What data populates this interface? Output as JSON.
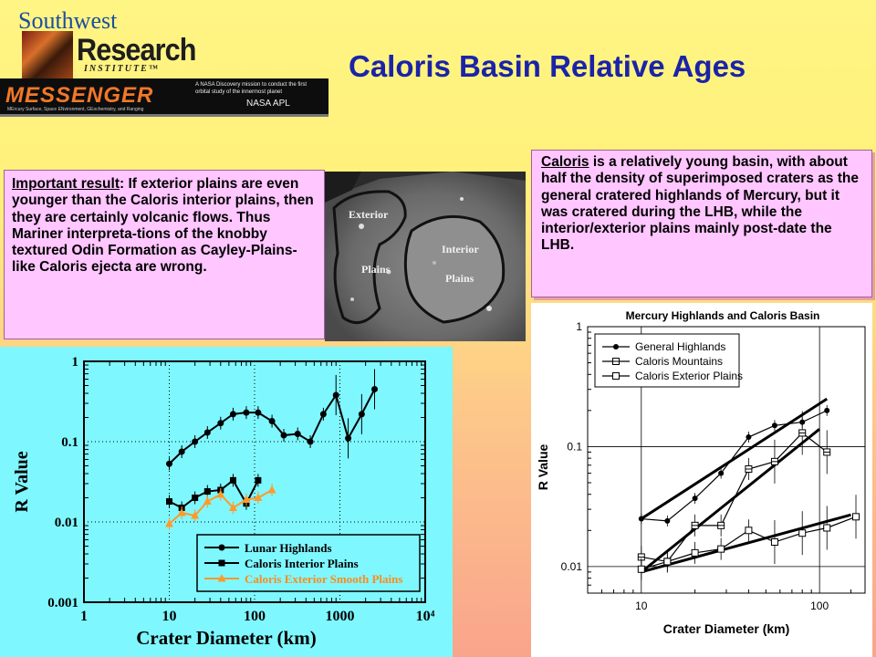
{
  "header": {
    "logo_top": "Southwest",
    "logo_main": "Research",
    "logo_sub": "INSTITUTE™",
    "banner_title": "MESSENGER",
    "banner_sub": "MErcury Surface, Space ENvironment, GEochemistry, and Ranging",
    "banner_desc": "A NASA Discovery mission to conduct the first orbital study of the innermost planet",
    "banner_logos": "NASA  APL",
    "title": "Caloris Basin Relative Ages"
  },
  "left_box": {
    "lead": "Important result",
    "text": ":  If exterior plains are even younger than the Caloris interior plains, then they are certainly volcanic flows.  Thus Mariner  interpreta-tions of the knobby textured Odin Formation as Cayley-Plains-like Caloris ejecta are wrong."
  },
  "right_box": {
    "lead": "Caloris",
    "text": " is a relatively young basin, with about half the density of superimposed craters as the general cratered highlands of Mercury, but it was cratered during the LHB, while the interior/exterior plains mainly post-date the LHB."
  },
  "image": {
    "label_exterior": "Exterior",
    "label_plains_left": "Plains",
    "label_interior": "Interior",
    "label_plains_right": "Plains"
  },
  "chart_data": [
    {
      "type": "line",
      "title": "",
      "xlabel": "Crater Diameter (km)",
      "ylabel": "R Value",
      "x_scale": "log",
      "y_scale": "log",
      "xlim": [
        1,
        10000
      ],
      "ylim": [
        0.001,
        1
      ],
      "x_ticks": [
        "1",
        "10",
        "100",
        "1000",
        "10⁴"
      ],
      "y_ticks": [
        "0.001",
        "0.01",
        "0.1",
        "1"
      ],
      "grid": "dotted at decades",
      "legend_position": "bottom-right",
      "series": [
        {
          "name": "Lunar Highlands",
          "color": "#000000",
          "marker": "circle",
          "x": [
            10,
            14,
            20,
            28,
            40,
            56,
            80,
            110,
            160,
            220,
            320,
            450,
            640,
            900,
            1250,
            1800,
            2550
          ],
          "y": [
            0.053,
            0.075,
            0.1,
            0.13,
            0.17,
            0.22,
            0.23,
            0.23,
            0.18,
            0.12,
            0.125,
            0.1,
            0.22,
            0.38,
            0.11,
            0.22,
            0.45
          ]
        },
        {
          "name": "Caloris Interior Plains",
          "color": "#000000",
          "marker": "square",
          "x": [
            10,
            14,
            20,
            28,
            40,
            56,
            80,
            110
          ],
          "y": [
            0.018,
            0.015,
            0.02,
            0.024,
            0.025,
            0.033,
            0.017,
            0.033
          ]
        },
        {
          "name": "Caloris Exterior Smooth Plains",
          "color": "#ff9a2a",
          "marker": "triangle",
          "x": [
            10,
            14,
            20,
            28,
            40,
            56,
            80,
            110,
            160
          ],
          "y": [
            0.0095,
            0.013,
            0.012,
            0.018,
            0.022,
            0.015,
            0.019,
            0.02,
            0.025
          ]
        }
      ]
    },
    {
      "type": "line",
      "title": "Mercury Highlands and Caloris Basin",
      "xlabel": "Crater Diameter (km)",
      "ylabel": "R Value",
      "x_scale": "log",
      "y_scale": "log",
      "xlim": [
        5,
        180
      ],
      "ylim": [
        0.006,
        1
      ],
      "x_ticks": [
        "10",
        "100"
      ],
      "y_ticks": [
        "0.01",
        "0.1",
        "1"
      ],
      "grid": "lines at decades",
      "legend_position": "top-left",
      "series": [
        {
          "name": "General Highlands",
          "marker": "filled-circle",
          "x": [
            10,
            14,
            20,
            28,
            40,
            56,
            80,
            110
          ],
          "y": [
            0.025,
            0.024,
            0.037,
            0.06,
            0.12,
            0.15,
            0.16,
            0.2
          ]
        },
        {
          "name": "Caloris Mountains",
          "marker": "square-cross",
          "x": [
            10,
            14,
            20,
            28,
            40,
            56,
            80,
            110
          ],
          "y": [
            0.012,
            0.011,
            0.022,
            0.022,
            0.065,
            0.075,
            0.13,
            0.09
          ]
        },
        {
          "name": "Caloris Exterior Plains",
          "marker": "open-square",
          "x": [
            10,
            14,
            20,
            28,
            40,
            56,
            80,
            110,
            160
          ],
          "y": [
            0.0095,
            0.011,
            0.013,
            0.014,
            0.02,
            0.016,
            0.019,
            0.021,
            0.026
          ]
        }
      ],
      "fit_lines": [
        {
          "x": [
            10,
            110
          ],
          "y": [
            0.025,
            0.25
          ]
        },
        {
          "x": [
            10,
            100
          ],
          "y": [
            0.009,
            0.14
          ]
        },
        {
          "x": [
            10,
            150
          ],
          "y": [
            0.009,
            0.027
          ]
        }
      ]
    }
  ]
}
